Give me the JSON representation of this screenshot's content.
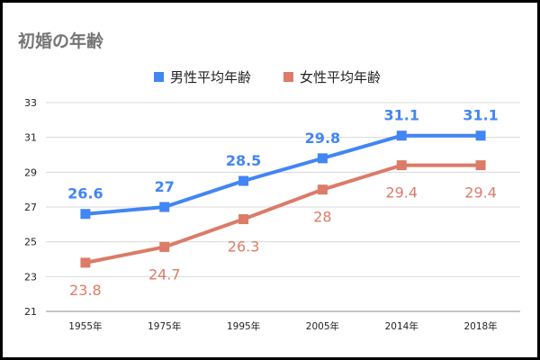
{
  "chart_data": {
    "type": "line",
    "title": "初婚の年齢",
    "categories": [
      "1955年",
      "1975年",
      "1995年",
      "2005年",
      "2014年",
      "2018年"
    ],
    "series": [
      {
        "name": "男性平均年齢",
        "color": "#4285f4",
        "values": [
          26.6,
          27,
          28.5,
          29.8,
          31.1,
          31.1
        ],
        "labels": [
          "26.6",
          "27",
          "28.5",
          "29.8",
          "31.1",
          "31.1"
        ],
        "label_position": "above",
        "label_bold": true
      },
      {
        "name": "女性平均年齢",
        "color": "#db7b68",
        "values": [
          23.8,
          24.7,
          26.3,
          28,
          29.4,
          29.4
        ],
        "labels": [
          "23.8",
          "24.7",
          "26.3",
          "28",
          "29.4",
          "29.4"
        ],
        "label_position": "below",
        "label_bold": false
      }
    ],
    "ylim": [
      21,
      33
    ],
    "yticks": [
      21,
      23,
      25,
      27,
      29,
      31,
      33
    ],
    "ytick_labels": [
      "21",
      "23",
      "25",
      "27",
      "29",
      "31",
      "33"
    ],
    "xlabel": "",
    "ylabel": "",
    "grid": true,
    "legend": "top-center"
  }
}
